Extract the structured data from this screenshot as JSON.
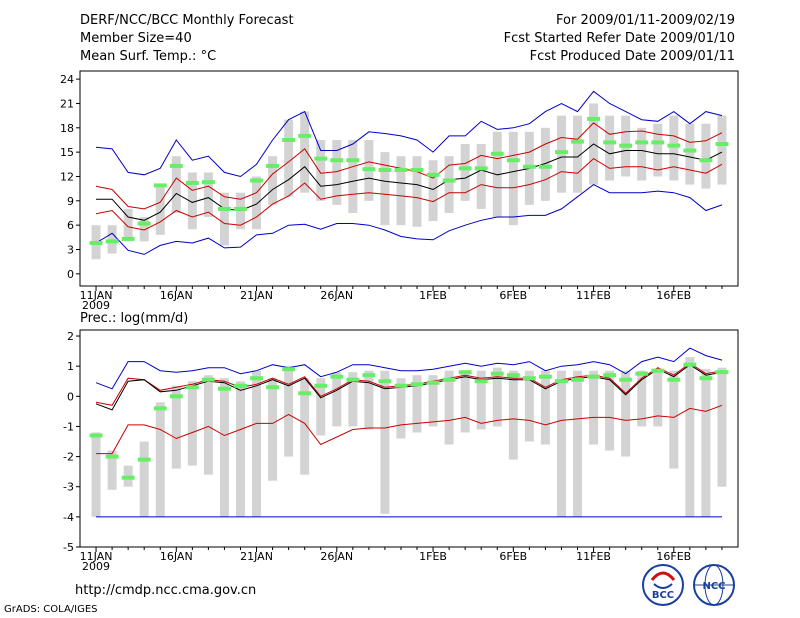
{
  "header": {
    "title": "DERF/NCC/BCC Monthly Forecast",
    "member_size": "Member Size=40",
    "period": "For 2009/01/11-2009/02/19",
    "fcst_started": "Fcst Started Refer Date 2009/01/10",
    "fcst_produced": "Fcst Produced Date 2009/01/11"
  },
  "footer": {
    "url": "http://cmdp.ncc.cma.gov.cn",
    "credit": "GrADS: COLA/IGES",
    "logo_bcc": "BCC",
    "logo_ncc": "NCC"
  },
  "colors": {
    "band": "#d3d3d3",
    "obs": "#66ee66",
    "mean": "#000000",
    "std": "#cc0000",
    "envelope": "#0000cc"
  },
  "chart_data": [
    {
      "type": "line",
      "title": "Mean Surf. Temp.: °C",
      "x": [
        1,
        2,
        3,
        4,
        5,
        6,
        7,
        8,
        9,
        10,
        11,
        12,
        13,
        14,
        15,
        16,
        17,
        18,
        19,
        20,
        21,
        22,
        23,
        24,
        25,
        26,
        27,
        28,
        29,
        30,
        31,
        32,
        33,
        34,
        35,
        36,
        37,
        38,
        39,
        40
      ],
      "xtick_positions": [
        1,
        6,
        11,
        16,
        22,
        27,
        32,
        37
      ],
      "xtick_labels": [
        "11JAN",
        "16JAN",
        "21JAN",
        "26JAN",
        "1FEB",
        "6FEB",
        "11FEB",
        "16FEB"
      ],
      "xtick_year": "2009",
      "xlim": [
        0,
        41
      ],
      "ylim": [
        -1.5,
        25
      ],
      "yticks": [
        0,
        3,
        6,
        9,
        12,
        15,
        18,
        21,
        24
      ],
      "series": [
        {
          "name": "Ensemble max",
          "values": [
            15.6,
            15.4,
            12.5,
            12.2,
            13,
            16.5,
            14,
            14.5,
            12.5,
            12,
            13.5,
            16.5,
            19,
            20,
            15.2,
            15.2,
            16,
            17.5,
            17.3,
            17,
            16.5,
            15,
            17,
            17,
            18.8,
            17.8,
            18,
            18.5,
            20,
            21,
            20,
            22.5,
            21,
            20,
            19,
            18.8,
            20,
            18.5,
            20,
            19.5
          ]
        },
        {
          "name": "Mean + 1 std",
          "values": [
            10.8,
            10.4,
            8.3,
            8.0,
            8.8,
            11.8,
            10.3,
            10.8,
            9.5,
            9.2,
            10.0,
            12.3,
            13.8,
            15.4,
            12.4,
            12.6,
            13.2,
            13.8,
            13.4,
            13.0,
            12.6,
            11.8,
            13.4,
            13.6,
            14.6,
            14.2,
            14.6,
            15.0,
            16.0,
            16.8,
            16.6,
            18.6,
            17.2,
            17.5,
            17.6,
            17.2,
            17.0,
            16.2,
            16.4,
            17.4
          ]
        },
        {
          "name": "Ensemble mean",
          "values": [
            9.2,
            9.2,
            7.0,
            6.6,
            7.6,
            9.9,
            8.8,
            9.4,
            8.0,
            7.8,
            8.6,
            10.4,
            11.6,
            13.2,
            10.8,
            11.0,
            11.4,
            11.8,
            11.4,
            11.2,
            11.0,
            10.4,
            11.6,
            11.8,
            12.8,
            12.2,
            12.6,
            13.0,
            13.6,
            14.4,
            14.4,
            16.0,
            14.8,
            15.2,
            15.2,
            14.8,
            14.8,
            14.4,
            14.0,
            15.0
          ]
        },
        {
          "name": "Mean - 1 std",
          "values": [
            7.4,
            7.8,
            5.8,
            5.4,
            6.4,
            7.8,
            7.0,
            7.6,
            6.2,
            6.0,
            7.0,
            8.6,
            9.6,
            11.2,
            9.2,
            9.6,
            9.8,
            10.0,
            9.8,
            9.6,
            9.4,
            8.9,
            10.0,
            10.0,
            11.0,
            10.6,
            10.6,
            11.0,
            11.6,
            12.6,
            12.4,
            14.2,
            13.0,
            13.2,
            13.2,
            12.8,
            13.2,
            12.8,
            12.4,
            13.5
          ]
        },
        {
          "name": "Ensemble min",
          "values": [
            3.8,
            5.0,
            2.9,
            2.4,
            3.5,
            4.0,
            3.8,
            4.4,
            3.2,
            3.3,
            4.8,
            5.0,
            6.0,
            6.1,
            5.5,
            6.2,
            6.2,
            6.0,
            5.4,
            4.6,
            4.3,
            4.2,
            5.3,
            6.0,
            6.6,
            7.0,
            7.0,
            7.2,
            7.2,
            8.0,
            9.5,
            11.0,
            10.0,
            10.0,
            10.0,
            10.2,
            10.0,
            9.4,
            7.8,
            8.5
          ]
        },
        {
          "name": "Observation",
          "values": [
            3.8,
            4.0,
            4.3,
            6.2,
            10.9,
            13.3,
            11.2,
            11.3,
            8.0,
            8.0,
            11.5,
            13.3,
            16.5,
            17.0,
            14.2,
            14.0,
            14.0,
            12.9,
            12.8,
            12.8,
            12.8,
            12.2,
            11.5,
            13.0,
            13.0,
            14.8,
            14.0,
            13.2,
            13.2,
            15.0,
            16.3,
            19.1,
            16.2,
            15.8,
            16.2,
            16.2,
            15.8,
            15.2,
            14.0,
            16.0
          ]
        },
        {
          "name": "Range low",
          "values": [
            1.8,
            2.5,
            4.5,
            4.0,
            4.8,
            7.5,
            5.5,
            7.0,
            3.5,
            5.5,
            5.5,
            8.5,
            9.5,
            10.0,
            9.0,
            8.5,
            7.5,
            9.0,
            6.0,
            6.0,
            5.8,
            6.5,
            7.5,
            9.0,
            8.0,
            7.0,
            6.0,
            8.5,
            9.0,
            10.0,
            10.0,
            11.0,
            11.5,
            12.0,
            11.5,
            12.0,
            11.5,
            11.0,
            10.5,
            11.0
          ]
        },
        {
          "name": "Range high",
          "values": [
            6.0,
            6.0,
            8.0,
            7.0,
            11.0,
            14.5,
            12.5,
            12.5,
            10.0,
            10.0,
            12.0,
            14.5,
            19.0,
            20.0,
            16.5,
            16.5,
            16.5,
            16.5,
            15.0,
            14.5,
            14.5,
            14.0,
            14.5,
            16.0,
            16.0,
            17.5,
            17.5,
            17.5,
            18.0,
            19.5,
            19.5,
            21.0,
            19.5,
            19.5,
            18.0,
            18.5,
            19.5,
            18.5,
            18.5,
            19.5
          ]
        }
      ]
    },
    {
      "type": "line",
      "title": "Prec.: log(mm/d)",
      "x": [
        1,
        2,
        3,
        4,
        5,
        6,
        7,
        8,
        9,
        10,
        11,
        12,
        13,
        14,
        15,
        16,
        17,
        18,
        19,
        20,
        21,
        22,
        23,
        24,
        25,
        26,
        27,
        28,
        29,
        30,
        31,
        32,
        33,
        34,
        35,
        36,
        37,
        38,
        39,
        40
      ],
      "xtick_positions": [
        1,
        6,
        11,
        16,
        22,
        27,
        32,
        37
      ],
      "xtick_labels": [
        "11JAN",
        "16JAN",
        "21JAN",
        "26JAN",
        "1FEB",
        "6FEB",
        "11FEB",
        "16FEB"
      ],
      "xtick_year": "2009",
      "xlim": [
        0,
        41
      ],
      "ylim": [
        -5,
        2.2
      ],
      "yticks": [
        -5,
        -4,
        -3,
        -2,
        -1,
        0,
        1,
        2
      ],
      "series": [
        {
          "name": "Ensemble max",
          "values": [
            0.45,
            0.25,
            1.15,
            1.15,
            0.85,
            0.8,
            0.85,
            0.95,
            0.95,
            0.75,
            0.85,
            1.05,
            0.95,
            1.05,
            0.65,
            0.8,
            1.05,
            1.05,
            0.95,
            0.85,
            0.85,
            0.9,
            1.0,
            1.1,
            1.0,
            1.1,
            1.05,
            1.15,
            0.85,
            1.0,
            1.05,
            1.15,
            1.05,
            0.75,
            1.15,
            1.3,
            1.15,
            1.6,
            1.35,
            1.2
          ]
        },
        {
          "name": "Mean + 1 std",
          "values": [
            -0.2,
            -0.3,
            0.6,
            0.55,
            0.2,
            0.3,
            0.4,
            0.55,
            0.5,
            0.3,
            0.4,
            0.6,
            0.4,
            0.65,
            0.0,
            0.25,
            0.55,
            0.5,
            0.3,
            0.35,
            0.4,
            0.5,
            0.6,
            0.7,
            0.6,
            0.65,
            0.6,
            0.6,
            0.3,
            0.55,
            0.65,
            0.7,
            0.6,
            0.1,
            0.6,
            0.95,
            0.7,
            1.1,
            0.75,
            0.85
          ]
        },
        {
          "name": "Ensemble mean",
          "values": [
            -0.25,
            -0.45,
            0.5,
            0.55,
            0.15,
            0.2,
            0.35,
            0.5,
            0.45,
            0.2,
            0.35,
            0.55,
            0.35,
            0.6,
            -0.05,
            0.2,
            0.5,
            0.45,
            0.25,
            0.3,
            0.35,
            0.45,
            0.55,
            0.65,
            0.55,
            0.6,
            0.55,
            0.55,
            0.25,
            0.5,
            0.6,
            0.65,
            0.55,
            0.05,
            0.55,
            0.9,
            0.65,
            1.05,
            0.7,
            0.8
          ]
        },
        {
          "name": "Mean - 1 std",
          "values": [
            -1.9,
            -1.9,
            -0.95,
            -0.95,
            -1.1,
            -1.4,
            -1.2,
            -1.0,
            -1.3,
            -1.1,
            -0.9,
            -0.9,
            -0.6,
            -0.9,
            -1.6,
            -1.35,
            -1.1,
            -1.05,
            -1.05,
            -0.95,
            -0.9,
            -0.85,
            -0.8,
            -0.7,
            -0.9,
            -0.8,
            -0.75,
            -0.8,
            -0.95,
            -0.8,
            -0.75,
            -0.7,
            -0.7,
            -0.8,
            -0.75,
            -0.65,
            -0.7,
            -0.4,
            -0.5,
            -0.3
          ]
        },
        {
          "name": "Ensemble min",
          "values": [
            -4,
            -4,
            -4,
            -4,
            -4,
            -4,
            -4,
            -4,
            -4,
            -4,
            -4,
            -4,
            -4,
            -4,
            -4,
            -4,
            -4,
            -4,
            -4,
            -4,
            -4,
            -4,
            -4,
            -4,
            -4,
            -4,
            -4,
            -4,
            -4,
            -4,
            -4,
            -4,
            -4,
            -4,
            -4,
            -4,
            -4,
            -4,
            -4,
            -4
          ]
        },
        {
          "name": "Observation",
          "values": [
            -1.3,
            -2.0,
            -2.7,
            -2.1,
            -0.4,
            0.0,
            0.3,
            0.55,
            0.25,
            0.35,
            0.6,
            0.3,
            0.9,
            0.1,
            0.35,
            0.65,
            0.55,
            0.7,
            0.5,
            0.35,
            0.4,
            0.45,
            0.55,
            0.8,
            0.5,
            0.75,
            0.7,
            0.6,
            0.65,
            0.5,
            0.55,
            0.65,
            0.7,
            0.55,
            0.75,
            0.85,
            0.55,
            1.05,
            0.6,
            0.8
          ]
        },
        {
          "name": "Range low",
          "values": [
            -4.0,
            -3.1,
            -3.0,
            -4.0,
            -4.0,
            -2.4,
            -2.3,
            -2.6,
            -4.0,
            -4.0,
            -4.0,
            -2.8,
            -2.0,
            -2.6,
            -1.3,
            -1.0,
            -1.0,
            -1.1,
            -3.9,
            -1.4,
            -1.2,
            -1.0,
            -1.6,
            -1.2,
            -1.1,
            -1.0,
            -2.1,
            -1.5,
            -1.6,
            -4.0,
            -4.0,
            -1.6,
            -1.8,
            -2.0,
            -1.0,
            -1.0,
            -2.4,
            -4.0,
            -4.0,
            -3.0
          ]
        },
        {
          "name": "Range high",
          "values": [
            -1.2,
            -1.8,
            -2.3,
            -1.5,
            -0.2,
            0.35,
            0.5,
            0.7,
            0.6,
            0.5,
            0.85,
            0.6,
            1.0,
            0.6,
            0.6,
            0.8,
            0.8,
            0.85,
            0.85,
            0.6,
            0.7,
            0.7,
            0.85,
            0.85,
            0.85,
            0.95,
            0.85,
            0.85,
            0.85,
            0.85,
            0.85,
            0.85,
            0.85,
            0.85,
            0.85,
            0.85,
            0.85,
            1.3,
            0.9,
            0.95
          ]
        }
      ]
    }
  ]
}
